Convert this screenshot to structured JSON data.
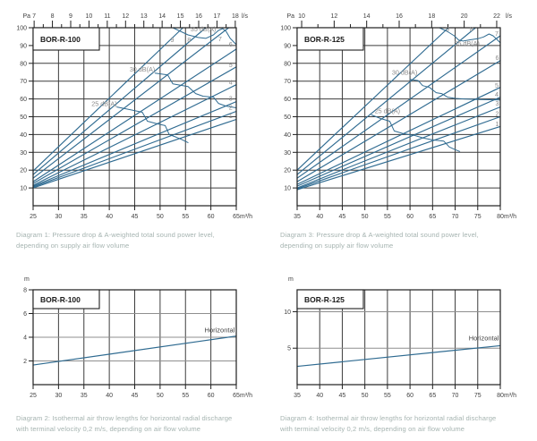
{
  "colors": {
    "background": "#ffffff",
    "curve": "#2f6b91",
    "grid": "#3c3c3c",
    "grid_light": "#8f8f8f",
    "frame": "#1f1f1f",
    "tick_text": "#3f3f3f",
    "annotation": "#8c8c8c",
    "annotation_dark": "#3f3f3f",
    "title": "#1a1a1a",
    "caption": "#a6b4b1"
  },
  "captions": {
    "diagram1": {
      "line1": "Diagram 1: Pressure drop & A-weighted total sound power level,",
      "line2": "depending on supply air flow volume"
    },
    "diagram3": {
      "line1": "Diagram 3: Pressure drop & A-weighted total sound power level,",
      "line2": "depending on supply air flow volume"
    },
    "diagram2": {
      "line1": "Diagram 2: Isothermal air throw lengths for horizontal radial discharge",
      "line2": "with terminal velocity 0,2 m/s, depending on air flow volume"
    },
    "diagram4": {
      "line1": "Diagram 4: Isothermal air throw lengths for horizontal radial discharge",
      "line2": "with terminal velocity 0,2 m/s, depending on air flow volume"
    }
  },
  "chart_data": [
    {
      "id": "pressure-bor-r-100",
      "type": "line",
      "title": "BOR-R-100",
      "y_unit": "Pa",
      "x_unit": "m³/h",
      "top_unit": "l/s",
      "x_range": [
        25,
        65
      ],
      "x_tick_step": 5,
      "y_range": [
        0,
        100
      ],
      "y_ticks": [
        10,
        20,
        30,
        40,
        50,
        60,
        70,
        80,
        90,
        100
      ],
      "top_axis": {
        "range": [
          7,
          18
        ],
        "major_step": 1,
        "minor_step": 0.5,
        "factor": 3.6
      },
      "series": [
        {
          "name": "setting-9",
          "points": [
            [
              25,
              19.5
            ],
            [
              54.5,
              100
            ]
          ]
        },
        {
          "name": "setting-8",
          "points": [
            [
              25,
              17.5
            ],
            [
              59,
              100
            ]
          ]
        },
        {
          "name": "setting-7",
          "points": [
            [
              25,
              15.5
            ],
            [
              63.5,
              100
            ]
          ]
        },
        {
          "name": "setting-6",
          "points": [
            [
              25,
              13.5
            ],
            [
              65,
              88
            ]
          ]
        },
        {
          "name": "setting-5",
          "points": [
            [
              25,
              12.5
            ],
            [
              65,
              78
            ]
          ]
        },
        {
          "name": "setting-4",
          "points": [
            [
              25,
              11.5
            ],
            [
              65,
              68
            ]
          ]
        },
        {
          "name": "setting-3",
          "points": [
            [
              25,
              11
            ],
            [
              65,
              58.5
            ]
          ]
        },
        {
          "name": "setting-2",
          "points": [
            [
              25,
              10.5
            ],
            [
              65,
              53
            ]
          ]
        },
        {
          "name": "setting-1",
          "points": [
            [
              25,
              10
            ],
            [
              65,
              48.5
            ]
          ]
        },
        {
          "name": "contour-25-dba",
          "points": [
            [
              41.5,
              55.5
            ],
            [
              44,
              54
            ],
            [
              46.5,
              52.5
            ],
            [
              47.5,
              47.5
            ],
            [
              49.5,
              46
            ],
            [
              51,
              45
            ],
            [
              51.8,
              40
            ],
            [
              53.2,
              38.5
            ],
            [
              54.2,
              37.3
            ],
            [
              55.5,
              35.5
            ]
          ]
        },
        {
          "name": "contour-30-dba",
          "points": [
            [
              49,
              74.5
            ],
            [
              51.5,
              73.5
            ],
            [
              52.5,
              68.5
            ],
            [
              54.5,
              67.5
            ],
            [
              55.5,
              67
            ],
            [
              57,
              63
            ],
            [
              58.5,
              61.5
            ],
            [
              60.5,
              61
            ],
            [
              61.5,
              57.5
            ],
            [
              63,
              56
            ],
            [
              65,
              55
            ]
          ]
        },
        {
          "name": "contour-35-dba",
          "points": [
            [
              52.5,
              100
            ],
            [
              54,
              98
            ],
            [
              55.5,
              96
            ],
            [
              57.5,
              94.5
            ],
            [
              59,
              94
            ],
            [
              60.5,
              96
            ],
            [
              61.5,
              98.5
            ],
            [
              62.3,
              99.5
            ],
            [
              63,
              98
            ],
            [
              63.8,
              94
            ],
            [
              65,
              90.5
            ]
          ]
        }
      ],
      "annotations": [
        {
          "text": "35 dB(A)",
          "x": 58.5,
          "y": 98,
          "anchor": "middle"
        },
        {
          "text": "30 dB(A)",
          "x": 46.5,
          "y": 75.5,
          "anchor": "middle"
        },
        {
          "text": "25 dB(A)",
          "x": 39,
          "y": 56,
          "anchor": "middle"
        },
        {
          "text": "9",
          "x": 52.4,
          "y": 92,
          "anchor": "middle"
        },
        {
          "text": "8",
          "x": 55.7,
          "y": 92,
          "anchor": "middle"
        },
        {
          "text": "7",
          "x": 61.8,
          "y": 92.5,
          "anchor": "middle"
        },
        {
          "text": "6",
          "x": 63.9,
          "y": 89.5,
          "anchor": "middle"
        },
        {
          "text": "5",
          "x": 63.9,
          "y": 78,
          "anchor": "middle"
        },
        {
          "text": "4",
          "x": 63.9,
          "y": 68,
          "anchor": "middle"
        },
        {
          "text": "3",
          "x": 63.9,
          "y": 59,
          "anchor": "middle"
        },
        {
          "text": "2",
          "x": 63.9,
          "y": 54,
          "anchor": "middle"
        },
        {
          "text": "1",
          "x": 63.9,
          "y": 49.3,
          "anchor": "middle"
        }
      ]
    },
    {
      "id": "pressure-bor-r-125",
      "type": "line",
      "title": "BOR-R-125",
      "y_unit": "Pa",
      "x_unit": "m³/h",
      "top_unit": "l/s",
      "x_range": [
        35,
        80
      ],
      "x_tick_step": 5,
      "y_range": [
        0,
        100
      ],
      "y_ticks": [
        10,
        20,
        30,
        40,
        50,
        60,
        70,
        80,
        90,
        100
      ],
      "top_axis": {
        "range": [
          10,
          22
        ],
        "major_step": 2,
        "minor_step": 1,
        "factor": 3.6
      },
      "series": [
        {
          "name": "setting-9",
          "points": [
            [
              35,
              20
            ],
            [
              68.5,
              100
            ]
          ]
        },
        {
          "name": "setting-8",
          "points": [
            [
              35,
              17.5
            ],
            [
              74.5,
              100
            ]
          ]
        },
        {
          "name": "setting-7",
          "points": [
            [
              35,
              15.5
            ],
            [
              80,
              95.5
            ]
          ]
        },
        {
          "name": "setting-6",
          "points": [
            [
              35,
              13.5
            ],
            [
              80,
              81.5
            ]
          ]
        },
        {
          "name": "setting-5",
          "points": [
            [
              35,
              12
            ],
            [
              80,
              66.5
            ]
          ]
        },
        {
          "name": "setting-4",
          "points": [
            [
              35,
              11
            ],
            [
              80,
              61
            ]
          ]
        },
        {
          "name": "setting-3",
          "points": [
            [
              35,
              10
            ],
            [
              80,
              55.5
            ]
          ]
        },
        {
          "name": "setting-2",
          "points": [
            [
              35,
              9.5
            ],
            [
              80,
              50
            ]
          ]
        },
        {
          "name": "setting-1",
          "points": [
            [
              35,
              9
            ],
            [
              80,
              44.5
            ]
          ]
        },
        {
          "name": "contour-25-dba",
          "points": [
            [
              51.5,
              51
            ],
            [
              53.5,
              49
            ],
            [
              55.5,
              47.5
            ],
            [
              56.5,
              42
            ],
            [
              58.5,
              40.5
            ],
            [
              61,
              39.5
            ],
            [
              63,
              38
            ],
            [
              65,
              37
            ],
            [
              67.5,
              36.3
            ],
            [
              68.7,
              33
            ],
            [
              70,
              31.5
            ],
            [
              71,
              30.5
            ]
          ]
        },
        {
          "name": "contour-30-dba",
          "points": [
            [
              60,
              71
            ],
            [
              61.8,
              70.3
            ],
            [
              62.8,
              67.5
            ],
            [
              64.3,
              66.5
            ],
            [
              65.8,
              63.5
            ],
            [
              67,
              63
            ],
            [
              68.3,
              61
            ],
            [
              70,
              60.3
            ],
            [
              72,
              60
            ],
            [
              75,
              59.7
            ],
            [
              80,
              59.4
            ]
          ]
        },
        {
          "name": "contour-35-dba",
          "points": [
            [
              66.5,
              100
            ],
            [
              68.2,
              98
            ],
            [
              69.8,
              95.5
            ],
            [
              70.8,
              93
            ],
            [
              71.8,
              92.5
            ],
            [
              73.3,
              93.2
            ],
            [
              75,
              93.8
            ],
            [
              76.3,
              94.8
            ],
            [
              77.5,
              96.5
            ],
            [
              78.4,
              95.5
            ],
            [
              79.2,
              93.5
            ],
            [
              80,
              91.5
            ]
          ]
        }
      ],
      "annotations": [
        {
          "text": "35 dB(A)",
          "x": 72.6,
          "y": 90,
          "anchor": "middle"
        },
        {
          "text": "30 dB(A)",
          "x": 58.8,
          "y": 73.5,
          "anchor": "middle"
        },
        {
          "text": "25 dB(A)",
          "x": 55,
          "y": 52,
          "anchor": "middle"
        },
        {
          "text": "9",
          "x": 68.3,
          "y": 98,
          "anchor": "middle"
        },
        {
          "text": "8",
          "x": 73.6,
          "y": 98,
          "anchor": "middle"
        },
        {
          "text": "7",
          "x": 79.2,
          "y": 95.5,
          "anchor": "middle"
        },
        {
          "text": "6",
          "x": 79.3,
          "y": 82,
          "anchor": "middle"
        },
        {
          "text": "5",
          "x": 79.2,
          "y": 66.3,
          "anchor": "middle"
        },
        {
          "text": "4",
          "x": 79.2,
          "y": 61.2,
          "anchor": "middle"
        },
        {
          "text": "3",
          "x": 79.3,
          "y": 56.2,
          "anchor": "middle"
        },
        {
          "text": "2",
          "x": 79.3,
          "y": 50.6,
          "anchor": "middle"
        },
        {
          "text": "1",
          "x": 79.3,
          "y": 44.8,
          "anchor": "middle"
        }
      ]
    },
    {
      "id": "throw-bor-r-100",
      "type": "line",
      "title": "BOR-R-100",
      "y_unit": "m",
      "x_unit": "m³/h",
      "x_range": [
        25,
        65
      ],
      "x_tick_step": 5,
      "y_range": [
        0,
        8
      ],
      "y_ticks": [
        2,
        4,
        6,
        8
      ],
      "series": [
        {
          "name": "horizontal-throw",
          "points": [
            [
              25,
              1.65
            ],
            [
              65,
              4.1
            ]
          ]
        }
      ],
      "annotations": [
        {
          "text": "Horizontal",
          "x": 64.7,
          "y": 4.4,
          "anchor": "end",
          "dark": true
        }
      ]
    },
    {
      "id": "throw-bor-r-125",
      "type": "line",
      "title": "BOR-R-125",
      "y_unit": "m",
      "x_unit": "m³/h",
      "x_range": [
        35,
        80
      ],
      "x_tick_step": 5,
      "y_range": [
        0,
        13
      ],
      "y_ticks": [
        5,
        10
      ],
      "series": [
        {
          "name": "horizontal-throw",
          "points": [
            [
              35,
              2.5
            ],
            [
              80,
              5.35
            ]
          ]
        }
      ],
      "annotations": [
        {
          "text": "Horizontal",
          "x": 79.7,
          "y": 6.1,
          "anchor": "end",
          "dark": true
        }
      ]
    }
  ]
}
